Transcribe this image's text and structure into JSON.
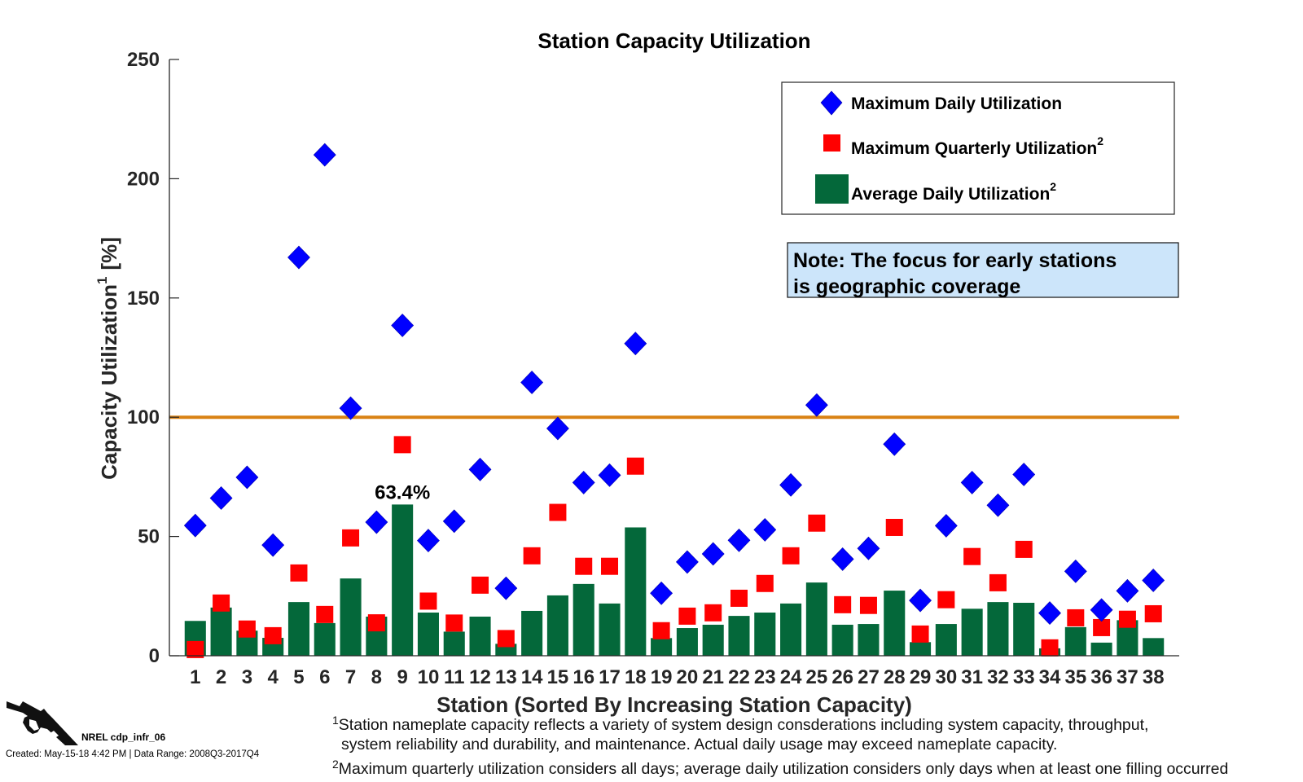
{
  "chart_data": {
    "type": "bar",
    "title": "Station Capacity Utilization",
    "xlabel": "Station (Sorted By Increasing Station Capacity)",
    "ylabel": "Capacity Utilization",
    "ylabel_superscript": "1",
    "ylabel_unit": "[%]",
    "ylim": [
      0,
      250
    ],
    "xlim": [
      0,
      39
    ],
    "yticks": [
      0,
      50,
      100,
      150,
      200,
      250
    ],
    "grid": false,
    "categories": [
      "1",
      "2",
      "3",
      "4",
      "5",
      "6",
      "7",
      "8",
      "9",
      "10",
      "11",
      "12",
      "13",
      "14",
      "15",
      "16",
      "17",
      "18",
      "19",
      "20",
      "21",
      "22",
      "23",
      "24",
      "25",
      "26",
      "27",
      "28",
      "29",
      "30",
      "31",
      "32",
      "33",
      "34",
      "35",
      "36",
      "37",
      "38"
    ],
    "series": [
      {
        "name": "Maximum Daily Utilization",
        "superscript": "",
        "type": "scatter",
        "marker": "diamond",
        "color": "#0000ff",
        "values": [
          54.6,
          66.1,
          74.8,
          46.4,
          167,
          210,
          103.8,
          56.0,
          138.5,
          48.3,
          56.4,
          78.1,
          28.3,
          114.6,
          95.3,
          72.6,
          75.7,
          130.9,
          26.2,
          39.3,
          42.7,
          48.4,
          52.8,
          71.6,
          105.1,
          40.5,
          45.0,
          88.7,
          23.2,
          54.5,
          72.6,
          63.1,
          76.0,
          17.9,
          35.4,
          19.2,
          27.2,
          31.6
        ]
      },
      {
        "name": "Maximum Quarterly Utilization",
        "superscript": "2",
        "type": "scatter",
        "marker": "square",
        "color": "#ff0000",
        "values": [
          2.6,
          22.1,
          11.2,
          8.4,
          34.7,
          17.3,
          49.4,
          13.8,
          88.5,
          22.9,
          13.7,
          29.6,
          7.2,
          41.9,
          60.1,
          37.5,
          37.5,
          79.5,
          10.5,
          16.6,
          18.0,
          24.1,
          30.3,
          41.9,
          55.6,
          21.4,
          21.1,
          53.8,
          9.1,
          23.5,
          41.6,
          30.6,
          44.6,
          3.3,
          15.9,
          11.8,
          15.3,
          17.6
        ]
      },
      {
        "name": "Average Daily Utilization",
        "superscript": "2",
        "type": "bar",
        "color": "#04683a",
        "values": [
          14.6,
          20.2,
          10.5,
          7.5,
          22.5,
          13.7,
          32.4,
          16.4,
          63.4,
          18.1,
          10.1,
          16.4,
          5.0,
          18.8,
          25.3,
          30.1,
          21.9,
          53.8,
          7.4,
          11.6,
          13.0,
          16.7,
          18.1,
          21.9,
          30.7,
          13.0,
          13.3,
          27.3,
          5.7,
          13.3,
          19.7,
          22.5,
          22.2,
          3.1,
          12.0,
          5.5,
          14.9,
          7.4
        ]
      }
    ],
    "reference_line": {
      "value": 100,
      "color": "#d98214"
    },
    "annotations": [
      {
        "text": "63.4%",
        "station": 9
      }
    ],
    "legend": {
      "placement": "top-right"
    },
    "note": {
      "lines": [
        "Note: The focus for early stations",
        "is geographic coverage"
      ],
      "background": "#cce5fa"
    }
  },
  "footnotes": {
    "fn1_mark": "1",
    "fn1_line1": "Station nameplate capacity reflects a variety of system design consderations including system capacity, throughput,",
    "fn1_line2": "system reliability and durability, and maintenance.  Actual daily usage may exceed nameplate capacity.",
    "fn2_mark": "2",
    "fn2_line1": "Maximum quarterly utilization considers all days; average daily utilization considers only days when at least one filling occurred"
  },
  "credits": {
    "icon": "fuel-nozzle-icon",
    "id": "NREL cdp_infr_06",
    "created": "Created: May-15-18  4:42 PM | Data Range: 2008Q3-2017Q4"
  }
}
